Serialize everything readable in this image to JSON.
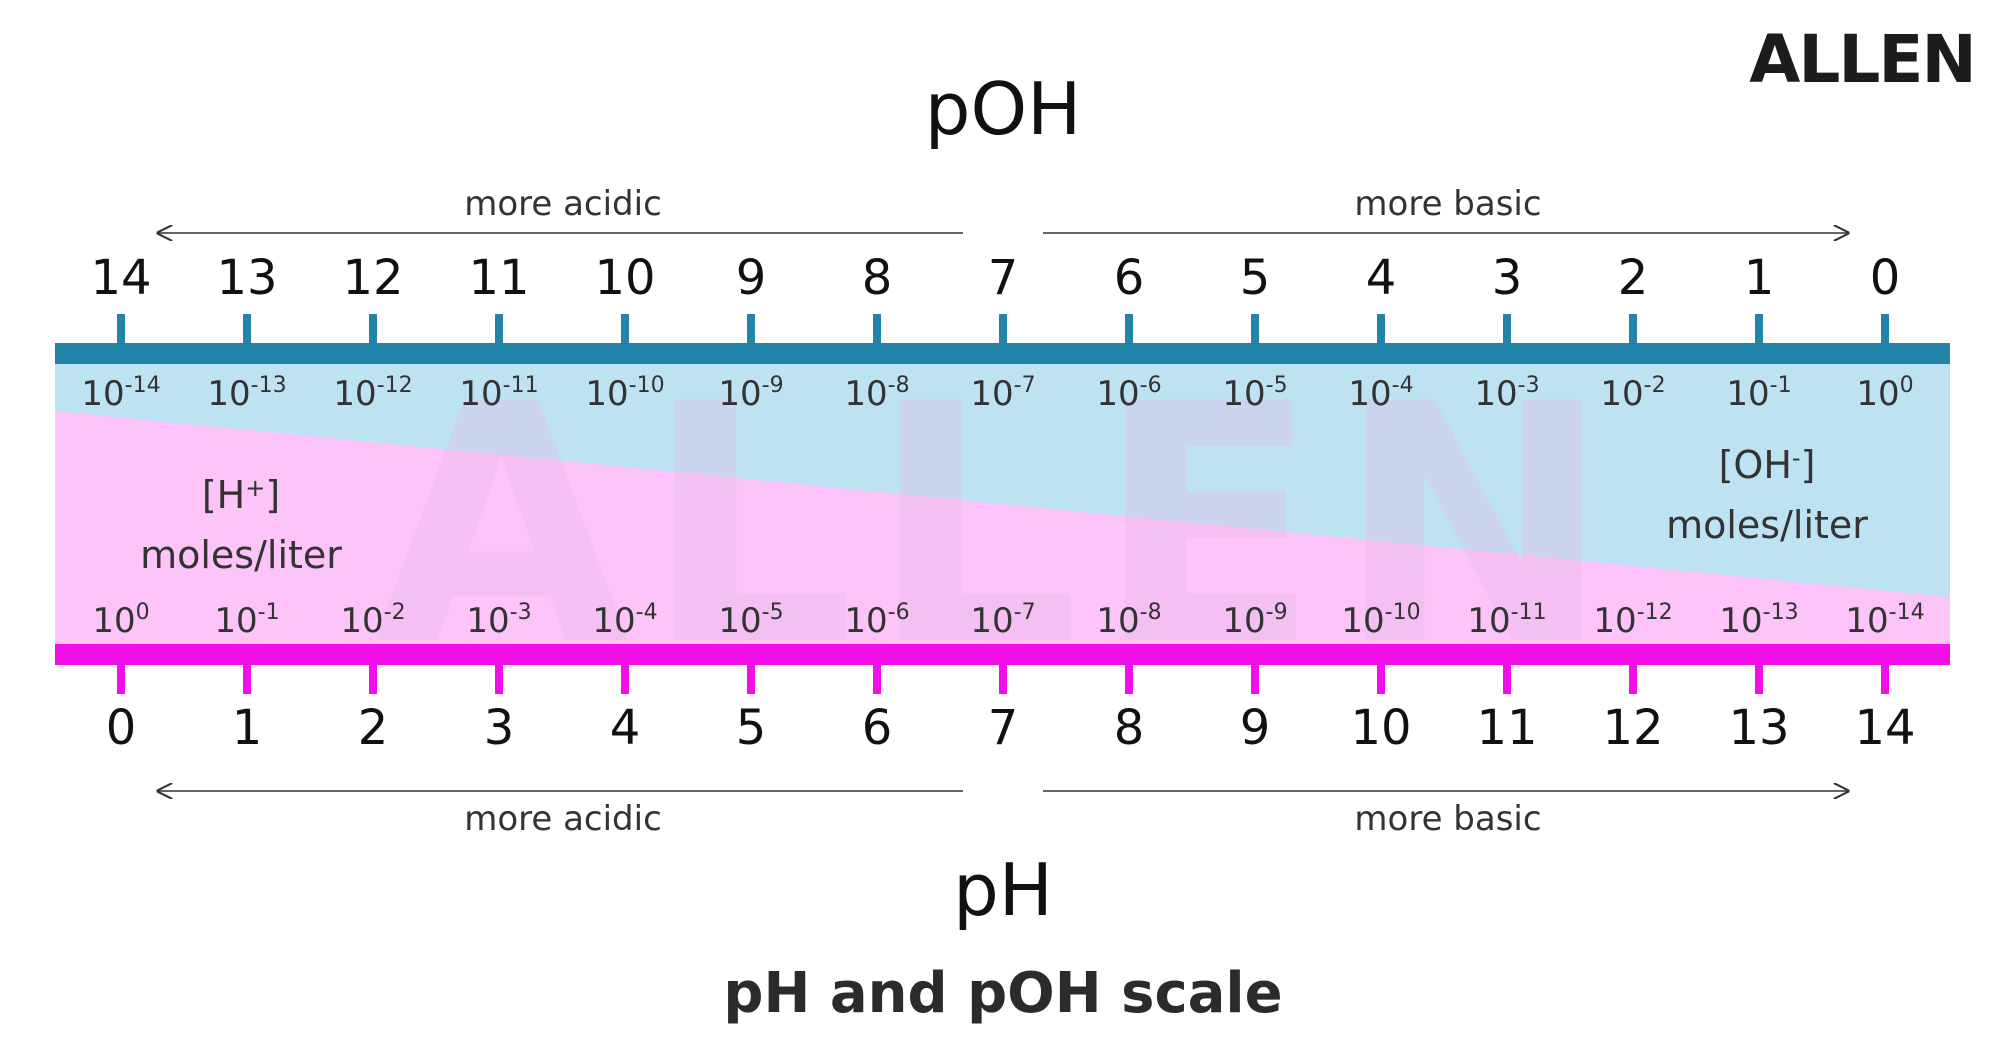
{
  "logo": {
    "text": "ALLEN"
  },
  "poh": {
    "title": "pOH",
    "left_arrow_label": "more acidic",
    "right_arrow_label": "more basic",
    "ticks": [
      "14",
      "13",
      "12",
      "11",
      "10",
      "9",
      "8",
      "7",
      "6",
      "5",
      "4",
      "3",
      "2",
      "1",
      "0"
    ],
    "conc_exponents": [
      "-14",
      "-13",
      "-12",
      "-11",
      "-10",
      "-9",
      "-8",
      "-7",
      "-6",
      "-5",
      "-4",
      "-3",
      "-2",
      "-1",
      "0"
    ]
  },
  "ph": {
    "title": "pH",
    "left_arrow_label": "more acidic",
    "right_arrow_label": "more basic",
    "ticks": [
      "0",
      "1",
      "2",
      "3",
      "4",
      "5",
      "6",
      "7",
      "8",
      "9",
      "10",
      "11",
      "12",
      "13",
      "14"
    ],
    "conc_exponents": [
      "0",
      "-1",
      "-2",
      "-3",
      "-4",
      "-5",
      "-6",
      "-7",
      "-8",
      "-9",
      "-10",
      "-11",
      "-12",
      "-13",
      "-14"
    ]
  },
  "conc_base": "10",
  "h_label": {
    "species": "[H",
    "charge": "+",
    "close": "]",
    "units": "moles/liter"
  },
  "oh_label": {
    "species": "[OH",
    "charge": "-",
    "close": "]",
    "units": "moles/liter"
  },
  "caption": "pH and pOH scale",
  "colors": {
    "poh_bar": "#2184a8",
    "ph_bar": "#f20ee8",
    "oh_region": "#bde3f2",
    "h_region": "#fcc4f8",
    "text": "#222222",
    "arrow": "#333333"
  }
}
